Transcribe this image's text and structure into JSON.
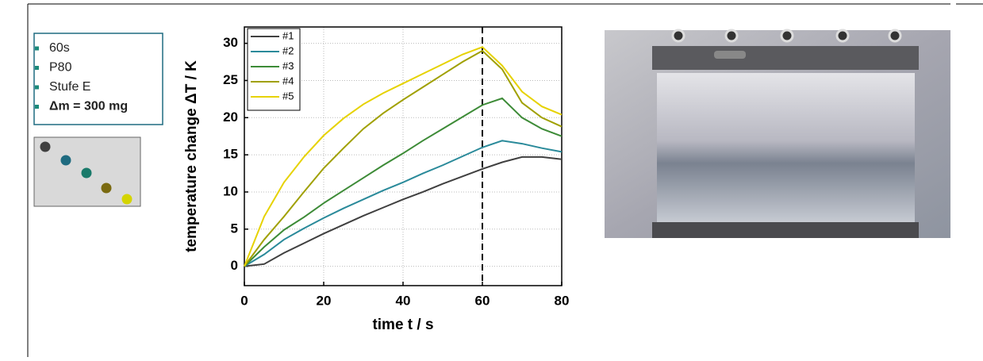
{
  "info": [
    "60s",
    "P80",
    "Stufe E",
    "Δm = 300 mg"
  ],
  "chart_data": {
    "type": "line",
    "x_label": "time t / s",
    "y_label": "temperature change ΔT / K",
    "x": [
      0,
      5,
      10,
      15,
      20,
      25,
      30,
      35,
      40,
      45,
      50,
      55,
      60,
      65,
      70,
      75,
      80
    ],
    "series": [
      {
        "name": "#1",
        "color": "#404040",
        "values": [
          0,
          0.3,
          1.8,
          3.1,
          4.4,
          5.6,
          6.8,
          7.9,
          9.0,
          10.0,
          11.1,
          12.1,
          13.1,
          14.0,
          14.7,
          14.7,
          14.4
        ]
      },
      {
        "name": "#2",
        "color": "#2a8a9a",
        "values": [
          0,
          1.6,
          3.6,
          5.1,
          6.5,
          7.8,
          9.0,
          10.2,
          11.3,
          12.5,
          13.6,
          14.8,
          16.0,
          16.9,
          16.5,
          15.9,
          15.4
        ]
      },
      {
        "name": "#3",
        "color": "#3d8b37",
        "values": [
          0,
          2.6,
          4.9,
          6.6,
          8.5,
          10.2,
          11.9,
          13.6,
          15.2,
          16.9,
          18.5,
          20.1,
          21.7,
          22.6,
          20.0,
          18.5,
          17.5
        ]
      },
      {
        "name": "#4",
        "color": "#a0a000",
        "values": [
          0,
          3.6,
          6.7,
          10.0,
          13.2,
          15.9,
          18.5,
          20.6,
          22.4,
          24.1,
          25.8,
          27.5,
          29.0,
          26.5,
          22.0,
          20.0,
          18.8
        ]
      },
      {
        "name": "#5",
        "color": "#e6d200",
        "values": [
          0,
          6.7,
          11.3,
          14.7,
          17.6,
          19.9,
          21.8,
          23.3,
          24.6,
          25.9,
          27.2,
          28.5,
          29.5,
          27.0,
          23.5,
          21.5,
          20.4
        ]
      }
    ],
    "xlim": [
      0,
      80
    ],
    "xticks": [
      0,
      20,
      40,
      60,
      80
    ],
    "ylim": [
      -2.6,
      32.2
    ],
    "yticks": [
      0,
      5,
      10,
      15,
      20,
      25,
      30
    ],
    "grid": true,
    "vline": 60,
    "legend": "upper left"
  }
}
